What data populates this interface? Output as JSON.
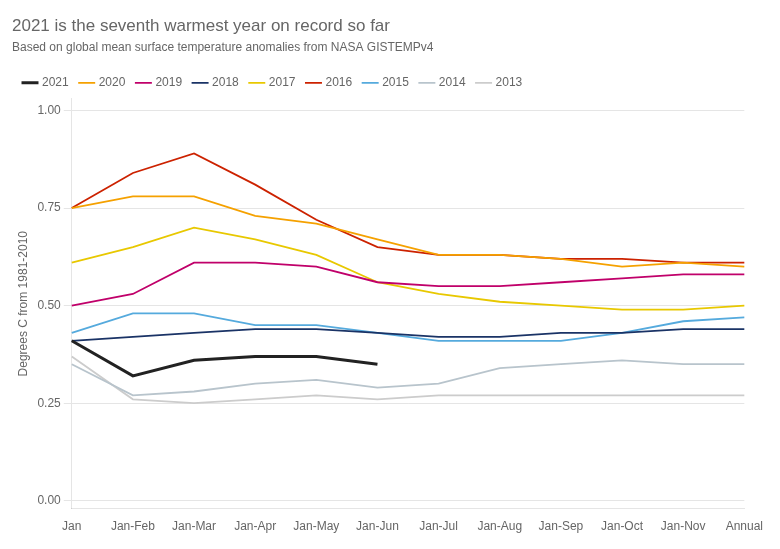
{
  "chart_data": {
    "type": "line",
    "title": "2021 is the seventh warmest year on record so far",
    "subtitle": "Based on global mean surface temperature anomalies from NASA GISTEMPv4",
    "ylabel": "Degrees C from 1981-2010",
    "categories": [
      "Jan",
      "Jan-Feb",
      "Jan-Mar",
      "Jan-Apr",
      "Jan-May",
      "Jan-Jun",
      "Jan-Jul",
      "Jan-Aug",
      "Jan-Sep",
      "Jan-Oct",
      "Jan-Nov",
      "Annual"
    ],
    "series": [
      {
        "name": "2021",
        "color": "#222222",
        "values": [
          0.41,
          0.32,
          0.36,
          0.37,
          0.37,
          0.35,
          null,
          null,
          null,
          null,
          null,
          null
        ]
      },
      {
        "name": "2020",
        "color": "#f5a100",
        "values": [
          0.75,
          0.78,
          0.78,
          0.73,
          0.71,
          0.67,
          0.63,
          0.63,
          0.62,
          0.6,
          0.61,
          0.6
        ]
      },
      {
        "name": "2019",
        "color": "#c0006a",
        "values": [
          0.5,
          0.53,
          0.61,
          0.61,
          0.6,
          0.56,
          0.55,
          0.55,
          0.56,
          0.57,
          0.58,
          0.58
        ]
      },
      {
        "name": "2018",
        "color": "#1a3366",
        "values": [
          0.41,
          0.42,
          0.43,
          0.44,
          0.44,
          0.43,
          0.42,
          0.42,
          0.43,
          0.43,
          0.44,
          0.44
        ]
      },
      {
        "name": "2017",
        "color": "#e8c800",
        "values": [
          0.61,
          0.65,
          0.7,
          0.67,
          0.63,
          0.56,
          0.53,
          0.51,
          0.5,
          0.49,
          0.49,
          0.5
        ]
      },
      {
        "name": "2016",
        "color": "#cc2200",
        "values": [
          0.75,
          0.84,
          0.89,
          0.81,
          0.72,
          0.65,
          0.63,
          0.63,
          0.62,
          0.62,
          0.61,
          0.61
        ]
      },
      {
        "name": "2015",
        "color": "#55aadd",
        "values": [
          0.43,
          0.48,
          0.48,
          0.45,
          0.45,
          0.43,
          0.41,
          0.41,
          0.41,
          0.43,
          0.46,
          0.47
        ]
      },
      {
        "name": "2014",
        "color": "#b8c4cc",
        "values": [
          0.35,
          0.27,
          0.28,
          0.3,
          0.31,
          0.29,
          0.3,
          0.34,
          0.35,
          0.36,
          0.35,
          0.35
        ]
      },
      {
        "name": "2013",
        "color": "#cccccc",
        "values": [
          0.37,
          0.26,
          0.25,
          0.26,
          0.27,
          0.26,
          0.27,
          0.27,
          0.27,
          0.27,
          0.27,
          0.27
        ]
      }
    ],
    "ylim": [
      -0.02,
      1.03
    ],
    "yticks": [
      {
        "value": 0,
        "label": "0.00"
      },
      0.25,
      {
        "value": 0.5,
        "label": "0.50"
      },
      0.75,
      {
        "value": 1,
        "label": "1.00"
      }
    ],
    "grid": true,
    "legend": "top"
  }
}
